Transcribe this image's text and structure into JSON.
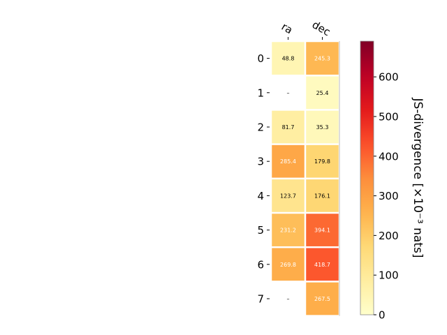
{
  "chart_data": {
    "type": "heatmap",
    "columns": [
      "ra",
      "dec"
    ],
    "rows": [
      "0",
      "1",
      "2",
      "3",
      "4",
      "5",
      "6",
      "7"
    ],
    "values": [
      [
        48.8,
        245.3
      ],
      [
        null,
        25.4
      ],
      [
        81.7,
        35.3
      ],
      [
        285.4,
        179.8
      ],
      [
        123.7,
        176.1
      ],
      [
        231.2,
        394.1
      ],
      [
        269.8,
        418.7
      ],
      [
        null,
        267.5
      ]
    ],
    "missing_label": "–",
    "colorbar": {
      "label": "JS-divergence [×10⁻³ nats]",
      "vmin": 0,
      "vmax": 690,
      "ticks": [
        0,
        100,
        200,
        300,
        400,
        500,
        600
      ],
      "colormap": "YlOrRd"
    }
  }
}
